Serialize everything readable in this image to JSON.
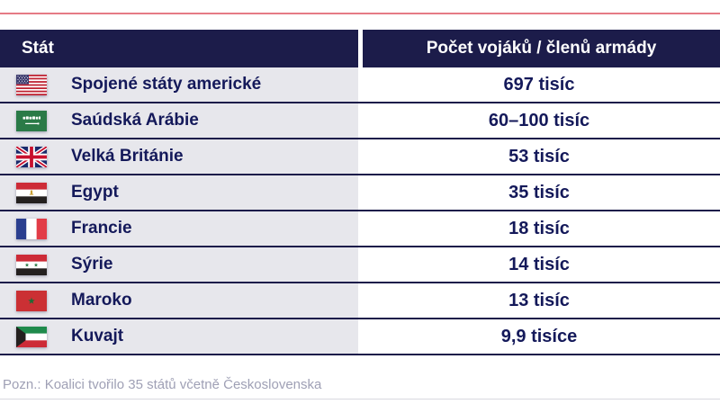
{
  "colors": {
    "header_bg": "#1c1c4a",
    "divider": "#1c1c4a",
    "row_bg": "#e7e7ec",
    "text_navy": "#14195a",
    "top_line": "#e57b85",
    "note_gray": "#9fa0b5",
    "bottom_line": "#d9d9e0"
  },
  "table": {
    "columns": [
      "Stát",
      "Počet vojáků / členů armády"
    ],
    "rows": [
      {
        "flag_icon": "us-flag-icon",
        "country": "Spojené státy americké",
        "value": "697 tisíc"
      },
      {
        "flag_icon": "sa-flag-icon",
        "country": "Saúdská Arábie",
        "value": "60–100 tisíc"
      },
      {
        "flag_icon": "gb-flag-icon",
        "country": "Velká Británie",
        "value": "53 tisíc"
      },
      {
        "flag_icon": "eg-flag-icon",
        "country": "Egypt",
        "value": "35 tisíc"
      },
      {
        "flag_icon": "fr-flag-icon",
        "country": "Francie",
        "value": "18 tisíc"
      },
      {
        "flag_icon": "sy-flag-icon",
        "country": "Sýrie",
        "value": "14 tisíc"
      },
      {
        "flag_icon": "ma-flag-icon",
        "country": "Maroko",
        "value": "13 tisíc"
      },
      {
        "flag_icon": "kw-flag-icon",
        "country": "Kuvajt",
        "value": "9,9 tisíce"
      }
    ]
  },
  "note": "Pozn.: Koalici tvořilo 35 států včetně Československa",
  "chart_data": {
    "type": "table",
    "columns": [
      "Stát",
      "Počet vojáků / členů armády"
    ],
    "rows": [
      [
        "Spojené státy americké",
        "697 tisíc"
      ],
      [
        "Saúdská Arábie",
        "60–100 tisíc"
      ],
      [
        "Velká Británie",
        "53 tisíc"
      ],
      [
        "Egypt",
        "35 tisíc"
      ],
      [
        "Francie",
        "18 tisíc"
      ],
      [
        "Sýrie",
        "14 tisíc"
      ],
      [
        "Maroko",
        "13 tisíc"
      ],
      [
        "Kuvajt",
        "9,9 tisíce"
      ]
    ],
    "note": "Pozn.: Koalici tvořilo 35 států včetně Československa"
  }
}
